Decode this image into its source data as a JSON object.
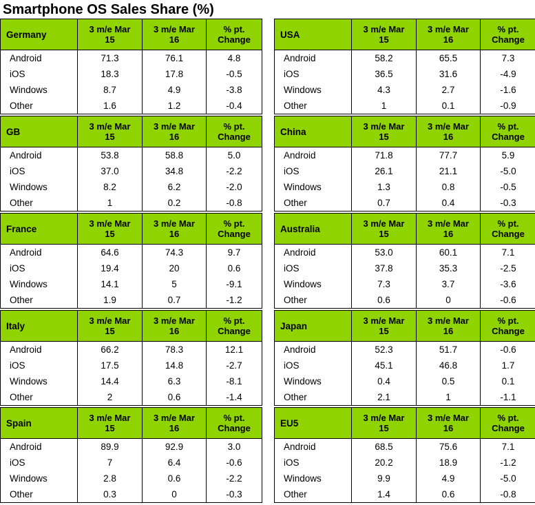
{
  "title": "Smartphone OS Sales Share (%)",
  "headers": {
    "col1_line1": "3 m/e Mar",
    "col1_line2": "15",
    "col2_line1": "3 m/e Mar",
    "col2_line2": "16",
    "col3_line1": "% pt.",
    "col3_line2": "Change"
  },
  "left": [
    {
      "name": "Germany",
      "rows": [
        {
          "os": "Android",
          "v15": "71.3",
          "v16": "76.1",
          "chg": "4.8"
        },
        {
          "os": "iOS",
          "v15": "18.3",
          "v16": "17.8",
          "chg": "-0.5"
        },
        {
          "os": "Windows",
          "v15": "8.7",
          "v16": "4.9",
          "chg": "-3.8"
        },
        {
          "os": "Other",
          "v15": "1.6",
          "v16": "1.2",
          "chg": "-0.4"
        }
      ]
    },
    {
      "name": "GB",
      "rows": [
        {
          "os": "Android",
          "v15": "53.8",
          "v16": "58.8",
          "chg": "5.0"
        },
        {
          "os": "iOS",
          "v15": "37.0",
          "v16": "34.8",
          "chg": "-2.2"
        },
        {
          "os": "Windows",
          "v15": "8.2",
          "v16": "6.2",
          "chg": "-2.0"
        },
        {
          "os": "Other",
          "v15": "1",
          "v16": "0.2",
          "chg": "-0.8"
        }
      ]
    },
    {
      "name": "France",
      "rows": [
        {
          "os": "Android",
          "v15": "64.6",
          "v16": "74.3",
          "chg": "9.7"
        },
        {
          "os": "iOS",
          "v15": "19.4",
          "v16": "20",
          "chg": "0.6"
        },
        {
          "os": "Windows",
          "v15": "14.1",
          "v16": "5",
          "chg": "-9.1"
        },
        {
          "os": "Other",
          "v15": "1.9",
          "v16": "0.7",
          "chg": "-1.2"
        }
      ]
    },
    {
      "name": "Italy",
      "rows": [
        {
          "os": "Android",
          "v15": "66.2",
          "v16": "78.3",
          "chg": "12.1"
        },
        {
          "os": "iOS",
          "v15": "17.5",
          "v16": "14.8",
          "chg": "-2.7"
        },
        {
          "os": "Windows",
          "v15": "14.4",
          "v16": "6.3",
          "chg": "-8.1"
        },
        {
          "os": "Other",
          "v15": "2",
          "v16": "0.6",
          "chg": "-1.4"
        }
      ]
    },
    {
      "name": "Spain",
      "rows": [
        {
          "os": "Android",
          "v15": "89.9",
          "v16": "92.9",
          "chg": "3.0"
        },
        {
          "os": "iOS",
          "v15": "7",
          "v16": "6.4",
          "chg": "-0.6"
        },
        {
          "os": "Windows",
          "v15": "2.8",
          "v16": "0.6",
          "chg": "-2.2"
        },
        {
          "os": "Other",
          "v15": "0.3",
          "v16": "0",
          "chg": "-0.3"
        }
      ]
    }
  ],
  "right": [
    {
      "name": "USA",
      "rows": [
        {
          "os": "Android",
          "v15": "58.2",
          "v16": "65.5",
          "chg": "7.3"
        },
        {
          "os": "iOS",
          "v15": "36.5",
          "v16": "31.6",
          "chg": "-4.9"
        },
        {
          "os": "Windows",
          "v15": "4.3",
          "v16": "2.7",
          "chg": "-1.6"
        },
        {
          "os": "Other",
          "v15": "1",
          "v16": "0.1",
          "chg": "-0.9"
        }
      ]
    },
    {
      "name": "China",
      "rows": [
        {
          "os": "Android",
          "v15": "71.8",
          "v16": "77.7",
          "chg": "5.9"
        },
        {
          "os": "iOS",
          "v15": "26.1",
          "v16": "21.1",
          "chg": "-5.0"
        },
        {
          "os": "Windows",
          "v15": "1.3",
          "v16": "0.8",
          "chg": "-0.5"
        },
        {
          "os": "Other",
          "v15": "0.7",
          "v16": "0.4",
          "chg": "-0.3"
        }
      ]
    },
    {
      "name": "Australia",
      "rows": [
        {
          "os": "Android",
          "v15": "53.0",
          "v16": "60.1",
          "chg": "7.1"
        },
        {
          "os": "iOS",
          "v15": "37.8",
          "v16": "35.3",
          "chg": "-2.5"
        },
        {
          "os": "Windows",
          "v15": "7.3",
          "v16": "3.7",
          "chg": "-3.6"
        },
        {
          "os": "Other",
          "v15": "0.6",
          "v16": "0",
          "chg": "-0.6"
        }
      ]
    },
    {
      "name": "Japan",
      "rows": [
        {
          "os": "Android",
          "v15": "52.3",
          "v16": "51.7",
          "chg": "-0.6"
        },
        {
          "os": "iOS",
          "v15": "45.1",
          "v16": "46.8",
          "chg": "1.7"
        },
        {
          "os": "Windows",
          "v15": "0.4",
          "v16": "0.5",
          "chg": "0.1"
        },
        {
          "os": "Other",
          "v15": "2.1",
          "v16": "1",
          "chg": "-1.1"
        }
      ]
    },
    {
      "name": "EU5",
      "rows": [
        {
          "os": "Android",
          "v15": "68.5",
          "v16": "75.6",
          "chg": "7.1"
        },
        {
          "os": "iOS",
          "v15": "20.2",
          "v16": "18.9",
          "chg": "-1.2"
        },
        {
          "os": "Windows",
          "v15": "9.9",
          "v16": "4.9",
          "chg": "-5.0"
        },
        {
          "os": "Other",
          "v15": "1.4",
          "v16": "0.6",
          "chg": "-0.8"
        }
      ]
    }
  ],
  "colors": {
    "header_bg": "#8fd400",
    "border": "#000000"
  }
}
